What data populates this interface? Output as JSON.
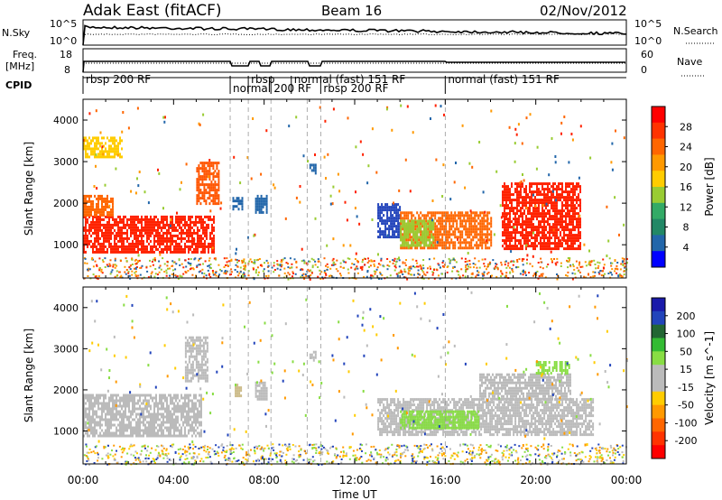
{
  "header": {
    "station": "Adak East (fitACF)",
    "beam": "Beam 16",
    "date": "02/Nov/2012"
  },
  "strips": {
    "nsky_label": "N.Sky",
    "nsky_ticks": [
      "10^5",
      "10^0"
    ],
    "nsearch_label": "N.Search",
    "freq_label_1": "Freq.",
    "freq_label_2": "[MHz]",
    "freq_ticks": [
      "18",
      "8"
    ],
    "nave_ticks": [
      "60",
      "0"
    ],
    "nave_label": "Nave",
    "cpid_label": "CPID"
  },
  "cpid_segments": [
    {
      "label": "rbsp 200 RF",
      "start": 0.0,
      "end": 6.5
    },
    {
      "label": "normal",
      "start": 6.5,
      "end": 7.3
    },
    {
      "label": "rbsp",
      "start": 7.3,
      "end": 8.3
    },
    {
      "label": "200 RF",
      "start": 8.3,
      "end": 9.2
    },
    {
      "label": "normal (fast) 151 RF",
      "start": 9.2,
      "end": 10.5
    },
    {
      "label": "rbsp 200 RF",
      "start": 10.5,
      "end": 16.0
    },
    {
      "label": "normal (fast) 151 RF",
      "start": 16.0,
      "end": 24.0
    }
  ],
  "colorbars": {
    "power": {
      "label": "Power [dB]",
      "ticks": [
        "28",
        "24",
        "20",
        "16",
        "12",
        "8",
        "4"
      ],
      "colors": [
        "#ff0000",
        "#ff3300",
        "#ff6600",
        "#ff9900",
        "#ffcc00",
        "#99cc33",
        "#33aa66",
        "#228866",
        "#2266aa",
        "#0000ff"
      ]
    },
    "velocity": {
      "label": "Velocity [m s^-1]",
      "ticks": [
        "200",
        "100",
        "50",
        "15",
        "-15",
        "-50",
        "-100",
        "-200"
      ],
      "colors": [
        "#1a1aaa",
        "#2244bb",
        "#226633",
        "#33bb33",
        "#88dd44",
        "#bbbbbb",
        "#bbbbbb",
        "#ffcc00",
        "#ff9900",
        "#ff6600",
        "#ff3300",
        "#ff0000"
      ]
    }
  },
  "chart_data": [
    {
      "type": "heatmap",
      "ylabel": "Slant Range [km]",
      "xlabel": "Time UT",
      "x_ticks": [
        "00:00",
        "04:00",
        "08:00",
        "12:00",
        "16:00",
        "20:00",
        "00:00"
      ],
      "y_ticks": [
        "1000",
        "2000",
        "3000",
        "4000"
      ],
      "xlim": [
        0,
        24
      ],
      "ylim": [
        200,
        4500
      ],
      "quantity": "power",
      "regions": [
        {
          "t0": 0.0,
          "t1": 5.8,
          "r0": 800,
          "r1": 1700,
          "color": "#ff2200"
        },
        {
          "t0": 0.0,
          "t1": 1.3,
          "r0": 1700,
          "r1": 2200,
          "color": "#ff6600"
        },
        {
          "t0": 0.0,
          "t1": 1.7,
          "r0": 3100,
          "r1": 3600,
          "color": "#ffcc00"
        },
        {
          "t0": 5.0,
          "t1": 6.0,
          "r0": 2000,
          "r1": 3000,
          "color": "#ff5500"
        },
        {
          "t0": 6.6,
          "t1": 7.0,
          "r0": 1850,
          "r1": 2150,
          "color": "#2266aa"
        },
        {
          "t0": 7.6,
          "t1": 8.1,
          "r0": 1800,
          "r1": 2200,
          "color": "#2266aa"
        },
        {
          "t0": 10.0,
          "t1": 10.3,
          "r0": 2700,
          "r1": 2950,
          "color": "#2266aa"
        },
        {
          "t0": 13.0,
          "t1": 14.0,
          "r0": 1200,
          "r1": 2000,
          "color": "#2244bb"
        },
        {
          "t0": 14.0,
          "t1": 18.0,
          "r0": 900,
          "r1": 1800,
          "color": "#ff6600"
        },
        {
          "t0": 14.0,
          "t1": 15.5,
          "r0": 1000,
          "r1": 1600,
          "color": "#99cc33"
        },
        {
          "t0": 18.5,
          "t1": 22.0,
          "r0": 900,
          "r1": 2500,
          "color": "#ff2200"
        }
      ]
    },
    {
      "type": "heatmap",
      "ylabel": "Slant Range [km]",
      "xlabel": "Time UT",
      "x_ticks": [
        "00:00",
        "04:00",
        "08:00",
        "12:00",
        "16:00",
        "20:00",
        "00:00"
      ],
      "y_ticks": [
        "1000",
        "2000",
        "3000",
        "4000"
      ],
      "xlim": [
        0,
        24
      ],
      "ylim": [
        200,
        4500
      ],
      "quantity": "velocity",
      "regions": [
        {
          "t0": 0.0,
          "t1": 5.2,
          "r0": 900,
          "r1": 1900,
          "color": "#bbbbbb"
        },
        {
          "t0": 4.5,
          "t1": 5.5,
          "r0": 2200,
          "r1": 3300,
          "color": "#bbbbbb"
        },
        {
          "t0": 6.7,
          "t1": 7.0,
          "r0": 1850,
          "r1": 2150,
          "color": "#ccbb88"
        },
        {
          "t0": 7.6,
          "t1": 8.1,
          "r0": 1800,
          "r1": 2200,
          "color": "#bbbbbb"
        },
        {
          "t0": 10.0,
          "t1": 10.3,
          "r0": 2700,
          "r1": 2950,
          "color": "#bbbbbb"
        },
        {
          "t0": 13.0,
          "t1": 22.5,
          "r0": 900,
          "r1": 1800,
          "color": "#bbbbbb"
        },
        {
          "t0": 14.0,
          "t1": 17.5,
          "r0": 1050,
          "r1": 1500,
          "color": "#88dd44"
        },
        {
          "t0": 17.5,
          "t1": 21.5,
          "r0": 1800,
          "r1": 2400,
          "color": "#bbbbbb"
        },
        {
          "t0": 20.0,
          "t1": 21.5,
          "r0": 2400,
          "r1": 2700,
          "color": "#88dd44"
        }
      ]
    }
  ]
}
